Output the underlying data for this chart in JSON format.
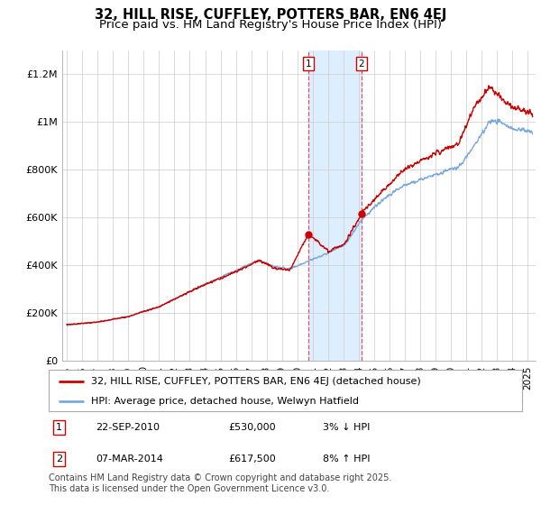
{
  "title": "32, HILL RISE, CUFFLEY, POTTERS BAR, EN6 4EJ",
  "subtitle": "Price paid vs. HM Land Registry's House Price Index (HPI)",
  "ytick_values": [
    0,
    200000,
    400000,
    600000,
    800000,
    1000000,
    1200000
  ],
  "ylim": [
    0,
    1300000
  ],
  "xlim_start": 1994.7,
  "xlim_end": 2025.5,
  "purchase1_date": 2010.73,
  "purchase1_price": 530000,
  "purchase1_label": "1",
  "purchase2_date": 2014.18,
  "purchase2_price": 617500,
  "purchase2_label": "2",
  "shade_start": 2010.73,
  "shade_end": 2014.18,
  "legend_line1": "32, HILL RISE, CUFFLEY, POTTERS BAR, EN6 4EJ (detached house)",
  "legend_line2": "HPI: Average price, detached house, Welwyn Hatfield",
  "table_row1": [
    "1",
    "22-SEP-2010",
    "£530,000",
    "3% ↓ HPI"
  ],
  "table_row2": [
    "2",
    "07-MAR-2014",
    "£617,500",
    "8% ↑ HPI"
  ],
  "footnote": "Contains HM Land Registry data © Crown copyright and database right 2025.\nThis data is licensed under the Open Government Licence v3.0.",
  "line_color_red": "#cc0000",
  "line_color_blue": "#7aaadd",
  "shade_color": "#ddeeff",
  "grid_color": "#cccccc",
  "hpi_seed": 1234,
  "red_seed": 5678
}
